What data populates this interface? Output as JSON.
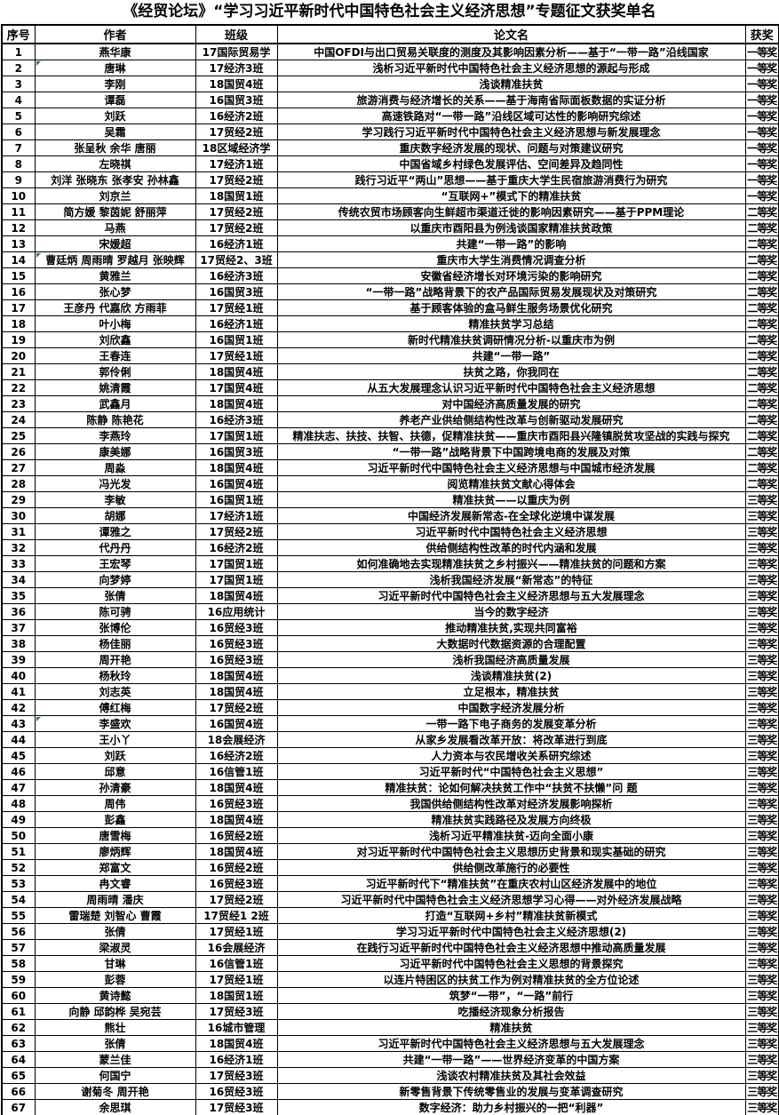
{
  "doc_title": "《经贸论坛》“学习习近平新时代中国特色社会主义经济思想”专题征文获奖单名",
  "colors": {
    "background": "#ffffff",
    "border": "#000000",
    "text": "#000000",
    "comment_marker_green": "#1e8a1e"
  },
  "table": {
    "headers": [
      "序号",
      "作者",
      "班级",
      "论文名",
      "获奖"
    ],
    "rows": [
      {
        "no": "1",
        "author": "燕华康",
        "class": "17国际贸易学",
        "title": "中国OFDI与出口贸易关联度的测度及其影响因素分析——基于“一带一路”沿线国家",
        "award": "一等奖",
        "marker": false
      },
      {
        "no": "2",
        "author": "唐琳",
        "class": "17经济3班",
        "title": "浅析习近平新时代中国特色社会主义经济思想的源起与形成",
        "award": "一等奖",
        "marker": true
      },
      {
        "no": "3",
        "author": "李刚",
        "class": "18国贸4班",
        "title": "浅谈精准扶贫",
        "award": "一等奖",
        "marker": false
      },
      {
        "no": "4",
        "author": "谭磊",
        "class": "16国贸3班",
        "title": "旅游消费与经济增长的关系——基于海南省际面板数据的实证分析",
        "award": "一等奖",
        "marker": false
      },
      {
        "no": "5",
        "author": "刘跃",
        "class": "16经济2班",
        "title": "高速铁路对“一带一路”沿线区域可达性的影响研究综述",
        "award": "一等奖",
        "marker": false
      },
      {
        "no": "6",
        "author": "吴霜",
        "class": "17贸经2班",
        "title": "学习践行习近平新时代中国特色社会主义经济思想与新发展理念",
        "award": "一等奖",
        "marker": false
      },
      {
        "no": "7",
        "author": "张呈秋 余华 唐丽",
        "class": "18区域经济学",
        "title": "重庆数字经济发展的现状、问题与对策建议研究",
        "award": "一等奖",
        "marker": false
      },
      {
        "no": "8",
        "author": "左晓祺",
        "class": "17经济1班",
        "title": "中国省域乡村绿色发展评估、空间差异及趋同性",
        "award": "一等奖",
        "marker": false
      },
      {
        "no": "9",
        "author": "刘洋 张晓东 张孝安 孙林鑫",
        "class": "17贸经2班",
        "title": "践行习近平“两山”思想——基于重庆大学生民宿旅游消费行为研究",
        "award": "一等奖",
        "marker": false
      },
      {
        "no": "10",
        "author": "刘京兰",
        "class": "18国贸1班",
        "title": "“互联网+”模式下的精准扶贫",
        "award": "一等奖",
        "marker": false
      },
      {
        "no": "11",
        "author": "简方媛 黎茵妮 舒丽萍",
        "class": "17贸经2班",
        "title": "传统农贸市场顾客向生鲜超市渠道迁徙的影响因素研究——基于PPM理论",
        "award": "二等奖",
        "marker": false
      },
      {
        "no": "12",
        "author": "马燕",
        "class": "17贸经2班",
        "title": "以重庆市酉阳县为例浅谈国家精准扶贫政策",
        "award": "二等奖",
        "marker": false
      },
      {
        "no": "13",
        "author": "宋媛超",
        "class": "16经济1班",
        "title": "共建“一带一路”的影响",
        "award": "二等奖",
        "marker": false
      },
      {
        "no": "14",
        "author": "曹廷炳 周雨晴 罗越月 张映辉",
        "class": "17贸经2、3班",
        "title": "重庆市大学生消费情况调查分析",
        "award": "二等奖",
        "marker": true
      },
      {
        "no": "15",
        "author": "黄雅兰",
        "class": "16经济3班",
        "title": "安徽省经济增长对环境污染的影响研究",
        "award": "二等奖",
        "marker": false
      },
      {
        "no": "16",
        "author": "张心梦",
        "class": "16国贸3班",
        "title": "“一带一路”战略背景下的农产品国际贸易发展现状及对策研究",
        "award": "二等奖",
        "marker": false
      },
      {
        "no": "17",
        "author": "王彦丹 代嘉欣 方雨菲",
        "class": "17贸经1班",
        "title": "基于顾客体验的盒马鲜生服务场景优化研究",
        "award": "二等奖",
        "marker": false
      },
      {
        "no": "18",
        "author": "叶小梅",
        "class": "16经济1班",
        "title": "精准扶贫学习总结",
        "award": "二等奖",
        "marker": false
      },
      {
        "no": "19",
        "author": "刘欣鑫",
        "class": "16国贸1班",
        "title": "新时代精准扶贫调研情况分析-以重庆市为例",
        "award": "二等奖",
        "marker": false
      },
      {
        "no": "20",
        "author": "王春连",
        "class": "17贸经1班",
        "title": "共建“一带一路”",
        "award": "二等奖",
        "marker": false
      },
      {
        "no": "21",
        "author": "郭伶俐",
        "class": "18国贸4班",
        "title": "扶贫之路，你我同在",
        "award": "二等奖",
        "marker": false
      },
      {
        "no": "22",
        "author": "姚清霞",
        "class": "17国贸4班",
        "title": "从五大发展理念认识习近平新时代中国特色社会主义经济思想",
        "award": "二等奖",
        "marker": false
      },
      {
        "no": "23",
        "author": "武鑫月",
        "class": "18国贸4班",
        "title": "对中国经济高质量发展的研究",
        "award": "二等奖",
        "marker": false
      },
      {
        "no": "24",
        "author": "陈静 陈艳花",
        "class": "16经济3班",
        "title": "养老产业供给侧结构性改革与创新驱动发展研究",
        "award": "二等奖",
        "marker": false
      },
      {
        "no": "25",
        "author": "李燕玲",
        "class": "17国贸1班",
        "title": "精准扶志、扶技、扶智、扶德，促精准扶贫——重庆市酉阳县兴隆镇脱贫攻坚战的实践与探究",
        "award": "二等奖",
        "marker": false
      },
      {
        "no": "26",
        "author": "康美娜",
        "class": "16国贸3班",
        "title": "“一带一路”战略背景下中国跨境电商的发展及对策",
        "award": "二等奖",
        "marker": false
      },
      {
        "no": "27",
        "author": "周淼",
        "class": "18国贸4班",
        "title": "习近平新时代中国特色社会主义经济思想与中国城市经济发展",
        "award": "二等奖",
        "marker": false
      },
      {
        "no": "28",
        "author": "冯光发",
        "class": "16国贸4班",
        "title": "阅览精准扶贫文献心得体会",
        "award": "二等奖",
        "marker": false
      },
      {
        "no": "29",
        "author": "李敏",
        "class": "16国贸1班",
        "title": "精准扶贫——以重庆为例",
        "award": "三等奖",
        "marker": false
      },
      {
        "no": "30",
        "author": "胡娜",
        "class": "17经济1班",
        "title": "中国经济发展新常态-在全球化逆境中谋发展",
        "award": "三等奖",
        "marker": false
      },
      {
        "no": "31",
        "author": "谭雅之",
        "class": "17贸经2班",
        "title": "习近平新时代中国特色社会主义经济思想",
        "award": "三等奖",
        "marker": false
      },
      {
        "no": "32",
        "author": "代丹丹",
        "class": "16经济2班",
        "title": "供给侧结构性改革的时代内涵和发展",
        "award": "三等奖",
        "marker": false
      },
      {
        "no": "33",
        "author": "王宏琴",
        "class": "17国贸1班",
        "title": "如何准确地去实现精准扶贫之乡村振兴——精准扶贫的问题和方案",
        "award": "三等奖",
        "marker": false
      },
      {
        "no": "34",
        "author": "向梦婷",
        "class": "17国贸1班",
        "title": "浅析我国经济发展“新常态”的特征",
        "award": "三等奖",
        "marker": false
      },
      {
        "no": "35",
        "author": "张倩",
        "class": "18国贸4班",
        "title": "习近平新时代中国特色社会主义经济思想与五大发展理念",
        "award": "三等奖",
        "marker": false
      },
      {
        "no": "36",
        "author": "陈可骋",
        "class": "16应用统计",
        "title": "当今的数字经济",
        "award": "三等奖",
        "marker": false
      },
      {
        "no": "37",
        "author": "张博伦",
        "class": "16贸经3班",
        "title": "推动精准扶贫,实现共同富裕",
        "award": "三等奖",
        "marker": false
      },
      {
        "no": "38",
        "author": "杨佳丽",
        "class": "16贸经3班",
        "title": "大数据时代数据资源的合理配置",
        "award": "三等奖",
        "marker": false
      },
      {
        "no": "39",
        "author": "周开艳",
        "class": "16贸经3班",
        "title": "浅析我国经济高质量发展",
        "award": "三等奖",
        "marker": false
      },
      {
        "no": "40",
        "author": "杨秋玲",
        "class": "18国贸4班",
        "title": "浅谈精准扶贫(2)",
        "award": "三等奖",
        "marker": false
      },
      {
        "no": "41",
        "author": "刘志英",
        "class": "18国贸4班",
        "title": "立足根本，精准扶贫",
        "award": "三等奖",
        "marker": false
      },
      {
        "no": "42",
        "author": "傅红梅",
        "class": "17贸经2班",
        "title": "中国数字经济发展分析",
        "award": "三等奖",
        "marker": false
      },
      {
        "no": "43",
        "author": "李盛欢",
        "class": "16国贸4班",
        "title": "一带一路下电子商务的发展变革分析",
        "award": "三等奖",
        "marker": true
      },
      {
        "no": "44",
        "author": "王小丫",
        "class": "18会展经济",
        "title": "从家乡发展看改革开放：将改革进行到底",
        "award": "三等奖",
        "marker": false
      },
      {
        "no": "45",
        "author": "刘跃",
        "class": "16经济2班",
        "title": "人力资本与农民增收关系研究综述",
        "award": "三等奖",
        "marker": false
      },
      {
        "no": "46",
        "author": "邱意",
        "class": "16信管1班",
        "title": "习近平新时代“中国特色社会主义思想”",
        "award": "三等奖",
        "marker": false
      },
      {
        "no": "47",
        "author": "孙清豪",
        "class": "18国贸4班",
        "title": "精准扶贫：论如何解决扶贫工作中“扶贫不扶懒”问 题",
        "award": "三等奖",
        "marker": false
      },
      {
        "no": "48",
        "author": "周伟",
        "class": "16贸经3班",
        "title": "我国供给侧结构性改革对经济发展影响探析",
        "award": "三等奖",
        "marker": false
      },
      {
        "no": "49",
        "author": "彭鑫",
        "class": "18国贸4班",
        "title": "精准扶贫实践路径及发展方向终极",
        "award": "三等奖",
        "marker": false
      },
      {
        "no": "50",
        "author": "唐雪梅",
        "class": "16贸经2班",
        "title": "浅析习近平精准扶贫-迈向全面小康",
        "award": "三等奖",
        "marker": false
      },
      {
        "no": "51",
        "author": "廖炳辉",
        "class": "18国贸4班",
        "title": "对习近平新时代中国特色社会主义思想历史背景和现实基础的研究",
        "award": "三等奖",
        "marker": false
      },
      {
        "no": "52",
        "author": "郑富文",
        "class": "16贸经2班",
        "title": "供给侧改革施行的必要性",
        "award": "三等奖",
        "marker": false
      },
      {
        "no": "53",
        "author": "冉文睿",
        "class": "16贸经3班",
        "title": "习近平新时代下“精准扶贫”在重庆农村山区经济发展中的地位",
        "award": "三等奖",
        "marker": false
      },
      {
        "no": "54",
        "author": "周雨晴 潘庆",
        "class": "17贸经2班",
        "title": "习近平新时代中国特色社会主义经济思想学习心得——对外经济发展战略",
        "award": "三等奖",
        "marker": false
      },
      {
        "no": "55",
        "author": "雷瑞楚 刘智心 曹霞",
        "class": "17贸经1 2班",
        "title": "打造“互联网+乡村”精准扶贫新模式",
        "award": "三等奖",
        "marker": false
      },
      {
        "no": "56",
        "author": "张倩",
        "class": "17贸经1班",
        "title": "学习习近平新时代中国特色社会主义经济思想(2)",
        "award": "三等奖",
        "marker": false
      },
      {
        "no": "57",
        "author": "梁淑灵",
        "class": "16会展经济",
        "title": "在践行习近平新时代中国特色社会主义经济思想中推动高质量发展",
        "award": "三等奖",
        "marker": false
      },
      {
        "no": "58",
        "author": "甘琳",
        "class": "16信管1班",
        "title": "习近平新时代中国特色社会主义思想的背景探究",
        "award": "三等奖",
        "marker": false
      },
      {
        "no": "59",
        "author": "彭蓉",
        "class": "17贸经1班",
        "title": "以连片特困区的扶贫工作为例对精准扶贫的全方位论述",
        "award": "三等奖",
        "marker": false
      },
      {
        "no": "60",
        "author": "黄诗懿",
        "class": "18国贸1班",
        "title": "筑梦“一带”，“一路”前行",
        "award": "三等奖",
        "marker": false
      },
      {
        "no": "61",
        "author": "向静 邱韵桦 吴宛芸",
        "class": "17贸经3班",
        "title": "吃播经济现象分析报告",
        "award": "三等奖",
        "marker": false
      },
      {
        "no": "62",
        "author": "熊壮",
        "class": "16城市管理",
        "title": "精准扶贫",
        "award": "三等奖",
        "marker": false
      },
      {
        "no": "63",
        "author": "张倩",
        "class": "18国贸4班",
        "title": "习近平新时代中国特色社会主义经济思想与五大发展理念",
        "award": "三等奖",
        "marker": false
      },
      {
        "no": "64",
        "author": "蒙兰佳",
        "class": "16经济1班",
        "title": "共建“一带一路”——世界经济变革的中国方案",
        "award": "三等奖",
        "marker": false
      },
      {
        "no": "65",
        "author": "何国宁",
        "class": "17贸经3班",
        "title": "浅谈农村精准扶贫及其社会效益",
        "award": "三等奖",
        "marker": false
      },
      {
        "no": "66",
        "author": "谢菊冬 周开艳",
        "class": "16贸经3班",
        "title": "新零售背景下传统零售业的发展与变革调查研究",
        "award": "三等奖",
        "marker": false
      },
      {
        "no": "67",
        "author": "余思琪",
        "class": "17贸经3班",
        "title": "数字经济：助力乡村振兴的一把“利器”",
        "award": "三等奖",
        "marker": false
      }
    ]
  }
}
